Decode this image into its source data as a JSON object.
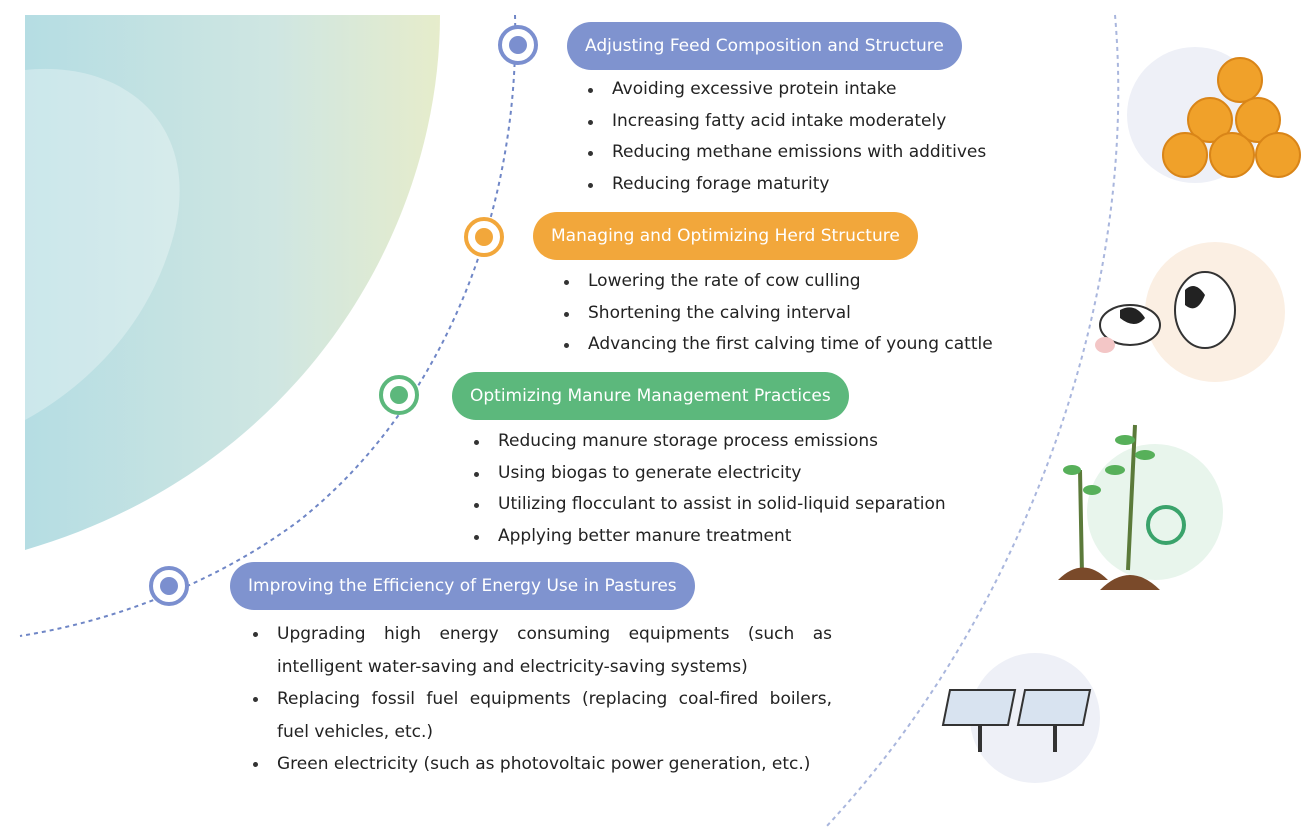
{
  "sections": [
    {
      "title": "Adjusting Feed Composition and Structure",
      "items": [
        "Avoiding excessive protein intake",
        "Increasing fatty acid intake moderately",
        "Reducing methane emissions with additives",
        "Reducing forage maturity"
      ]
    },
    {
      "title": "Managing and Optimizing Herd Structure",
      "items": [
        "Lowering the rate of cow culling",
        "Shortening the calving interval",
        "Advancing the first calving time of young cattle"
      ]
    },
    {
      "title": "Optimizing Manure Management Practices",
      "items": [
        "Reducing manure storage process emissions",
        "Using biogas to generate electricity",
        "Utilizing flocculant to assist in solid-liquid separation",
        "Applying better manure treatment"
      ]
    },
    {
      "title": "Improving the Efficiency of Energy Use in Pastures",
      "items": [
        "Upgrading high energy consuming equipments (such as intelligent water-saving and electricity-saving systems)",
        "Replacing fossil fuel equipments (replacing coal-fired boilers, fuel vehicles, etc.)",
        "Green electricity (such as photovoltaic power generation, etc.)"
      ]
    }
  ]
}
